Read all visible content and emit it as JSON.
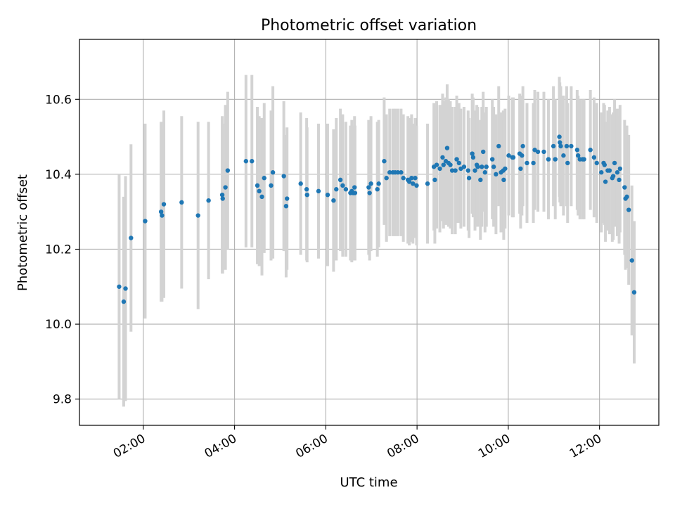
{
  "chart_data": {
    "type": "scatter",
    "title": "Photometric offset variation",
    "xlabel": "UTC time",
    "ylabel": "Photometric offset",
    "x_unit": "hours UTC",
    "xlim": [
      0.6,
      13.3
    ],
    "ylim": [
      9.73,
      10.76
    ],
    "grid": true,
    "x_ticks": [
      {
        "value": 2,
        "label": "02:00"
      },
      {
        "value": 4,
        "label": "04:00"
      },
      {
        "value": 6,
        "label": "06:00"
      },
      {
        "value": 8,
        "label": "08:00"
      },
      {
        "value": 10,
        "label": "10:00"
      },
      {
        "value": 12,
        "label": "12:00"
      }
    ],
    "y_ticks": [
      {
        "value": 9.8,
        "label": "9.8"
      },
      {
        "value": 10.0,
        "label": "10.0"
      },
      {
        "value": 10.2,
        "label": "10.2"
      },
      {
        "value": 10.4,
        "label": "10.4"
      },
      {
        "value": 10.6,
        "label": "10.6"
      }
    ],
    "colors": {
      "point": "#1f77b4",
      "errorbar": "#d3d3d3",
      "grid": "#b0b0b0",
      "axis": "#000000"
    },
    "series": [
      {
        "name": "offset",
        "points": [
          [
            1.47,
            10.1,
            0.3
          ],
          [
            1.57,
            10.06,
            0.28
          ],
          [
            1.61,
            10.095,
            0.3
          ],
          [
            1.73,
            10.23,
            0.25
          ],
          [
            2.04,
            10.275,
            0.26
          ],
          [
            2.39,
            10.3,
            0.24
          ],
          [
            2.41,
            10.29,
            0.23
          ],
          [
            2.45,
            10.32,
            0.25
          ],
          [
            2.84,
            10.325,
            0.23
          ],
          [
            3.2,
            10.29,
            0.25
          ],
          [
            3.43,
            10.33,
            0.21
          ],
          [
            3.73,
            10.345,
            0.21
          ],
          [
            3.74,
            10.335,
            0.2
          ],
          [
            3.8,
            10.365,
            0.22
          ],
          [
            3.85,
            10.41,
            0.21
          ],
          [
            4.25,
            10.435,
            0.23
          ],
          [
            4.38,
            10.435,
            0.23
          ],
          [
            4.5,
            10.37,
            0.21
          ],
          [
            4.54,
            10.355,
            0.2
          ],
          [
            4.6,
            10.34,
            0.21
          ],
          [
            4.65,
            10.39,
            0.2
          ],
          [
            4.8,
            10.37,
            0.2
          ],
          [
            4.84,
            10.405,
            0.23
          ],
          [
            5.08,
            10.395,
            0.2
          ],
          [
            5.13,
            10.315,
            0.19
          ],
          [
            5.15,
            10.335,
            0.19
          ],
          [
            5.45,
            10.375,
            0.19
          ],
          [
            5.58,
            10.36,
            0.19
          ],
          [
            5.59,
            10.345,
            0.18
          ],
          [
            5.84,
            10.355,
            0.18
          ],
          [
            6.04,
            10.345,
            0.19
          ],
          [
            6.17,
            10.33,
            0.19
          ],
          [
            6.23,
            10.36,
            0.19
          ],
          [
            6.32,
            10.385,
            0.19
          ],
          [
            6.37,
            10.37,
            0.19
          ],
          [
            6.44,
            10.36,
            0.18
          ],
          [
            6.54,
            10.35,
            0.18
          ],
          [
            6.57,
            10.355,
            0.19
          ],
          [
            6.6,
            10.35,
            0.18
          ],
          [
            6.63,
            10.365,
            0.19
          ],
          [
            6.64,
            10.35,
            0.18
          ],
          [
            6.94,
            10.365,
            0.18
          ],
          [
            6.96,
            10.35,
            0.18
          ],
          [
            6.99,
            10.375,
            0.18
          ],
          [
            7.13,
            10.36,
            0.18
          ],
          [
            7.16,
            10.375,
            0.17
          ],
          [
            7.28,
            10.435,
            0.17
          ],
          [
            7.33,
            10.39,
            0.17
          ],
          [
            7.4,
            10.405,
            0.17
          ],
          [
            7.47,
            10.405,
            0.17
          ],
          [
            7.52,
            10.405,
            0.17
          ],
          [
            7.58,
            10.405,
            0.17
          ],
          [
            7.65,
            10.405,
            0.17
          ],
          [
            7.7,
            10.39,
            0.17
          ],
          [
            7.8,
            10.385,
            0.17
          ],
          [
            7.83,
            10.38,
            0.17
          ],
          [
            7.88,
            10.39,
            0.17
          ],
          [
            7.91,
            10.375,
            0.16
          ],
          [
            7.96,
            10.39,
            0.16
          ],
          [
            7.99,
            10.37,
            0.16
          ],
          [
            8.23,
            10.375,
            0.16
          ],
          [
            8.37,
            10.42,
            0.17
          ],
          [
            8.39,
            10.385,
            0.17
          ],
          [
            8.43,
            10.425,
            0.17
          ],
          [
            8.5,
            10.415,
            0.17
          ],
          [
            8.56,
            10.445,
            0.17
          ],
          [
            8.58,
            10.425,
            0.17
          ],
          [
            8.63,
            10.435,
            0.17
          ],
          [
            8.66,
            10.47,
            0.17
          ],
          [
            8.69,
            10.43,
            0.17
          ],
          [
            8.73,
            10.425,
            0.17
          ],
          [
            8.77,
            10.41,
            0.17
          ],
          [
            8.84,
            10.41,
            0.17
          ],
          [
            8.87,
            10.44,
            0.17
          ],
          [
            8.92,
            10.43,
            0.16
          ],
          [
            8.96,
            10.415,
            0.16
          ],
          [
            9.03,
            10.42,
            0.16
          ],
          [
            9.12,
            10.41,
            0.16
          ],
          [
            9.14,
            10.39,
            0.16
          ],
          [
            9.21,
            10.455,
            0.16
          ],
          [
            9.23,
            10.445,
            0.16
          ],
          [
            9.27,
            10.41,
            0.16
          ],
          [
            9.31,
            10.425,
            0.16
          ],
          [
            9.33,
            10.42,
            0.16
          ],
          [
            9.39,
            10.385,
            0.16
          ],
          [
            9.42,
            10.42,
            0.16
          ],
          [
            9.45,
            10.46,
            0.16
          ],
          [
            9.49,
            10.405,
            0.16
          ],
          [
            9.52,
            10.42,
            0.16
          ],
          [
            9.65,
            10.44,
            0.16
          ],
          [
            9.68,
            10.42,
            0.16
          ],
          [
            9.73,
            10.4,
            0.16
          ],
          [
            9.79,
            10.475,
            0.16
          ],
          [
            9.84,
            10.405,
            0.16
          ],
          [
            9.89,
            10.41,
            0.16
          ],
          [
            9.9,
            10.385,
            0.16
          ],
          [
            9.93,
            10.415,
            0.16
          ],
          [
            10.01,
            10.45,
            0.16
          ],
          [
            10.09,
            10.445,
            0.16
          ],
          [
            10.11,
            10.445,
            0.16
          ],
          [
            10.25,
            10.455,
            0.16
          ],
          [
            10.27,
            10.415,
            0.16
          ],
          [
            10.3,
            10.45,
            0.16
          ],
          [
            10.32,
            10.475,
            0.16
          ],
          [
            10.41,
            10.43,
            0.16
          ],
          [
            10.55,
            10.43,
            0.16
          ],
          [
            10.58,
            10.465,
            0.16
          ],
          [
            10.65,
            10.46,
            0.16
          ],
          [
            10.78,
            10.46,
            0.16
          ],
          [
            10.88,
            10.44,
            0.16
          ],
          [
            10.99,
            10.475,
            0.16
          ],
          [
            11.03,
            10.44,
            0.16
          ],
          [
            11.12,
            10.5,
            0.16
          ],
          [
            11.13,
            10.485,
            0.16
          ],
          [
            11.15,
            10.475,
            0.16
          ],
          [
            11.21,
            10.45,
            0.16
          ],
          [
            11.28,
            10.475,
            0.16
          ],
          [
            11.3,
            10.43,
            0.16
          ],
          [
            11.38,
            10.475,
            0.16
          ],
          [
            11.51,
            10.465,
            0.16
          ],
          [
            11.53,
            10.45,
            0.16
          ],
          [
            11.57,
            10.44,
            0.16
          ],
          [
            11.63,
            10.44,
            0.16
          ],
          [
            11.66,
            10.44,
            0.16
          ],
          [
            11.8,
            10.465,
            0.16
          ],
          [
            11.88,
            10.445,
            0.16
          ],
          [
            11.94,
            10.43,
            0.16
          ],
          [
            12.04,
            10.405,
            0.16
          ],
          [
            12.09,
            10.43,
            0.16
          ],
          [
            12.11,
            10.425,
            0.16
          ],
          [
            12.13,
            10.38,
            0.16
          ],
          [
            12.18,
            10.41,
            0.16
          ],
          [
            12.22,
            10.41,
            0.17
          ],
          [
            12.28,
            10.39,
            0.17
          ],
          [
            12.3,
            10.395,
            0.17
          ],
          [
            12.33,
            10.43,
            0.17
          ],
          [
            12.39,
            10.405,
            0.17
          ],
          [
            12.43,
            10.385,
            0.17
          ],
          [
            12.45,
            10.415,
            0.17
          ],
          [
            12.55,
            10.365,
            0.18
          ],
          [
            12.57,
            10.335,
            0.19
          ],
          [
            12.6,
            10.34,
            0.19
          ],
          [
            12.64,
            10.305,
            0.2
          ],
          [
            12.71,
            10.17,
            0.2
          ],
          [
            12.76,
            10.085,
            0.19
          ]
        ]
      }
    ]
  }
}
